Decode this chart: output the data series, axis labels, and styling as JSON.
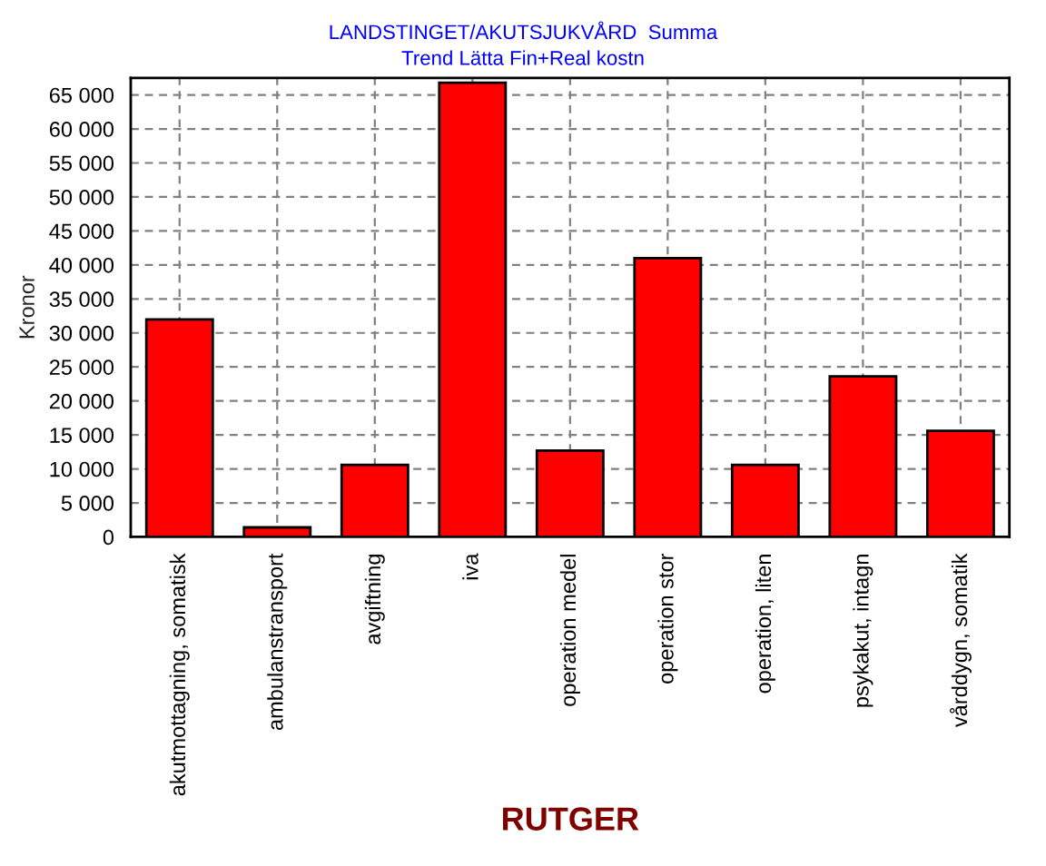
{
  "chart_data": {
    "type": "bar",
    "title": "LANDSTINGET/AKUTSJUKVÅRD  Summa",
    "subtitle": "Trend Lätta Fin+Real kostn",
    "xlabel": "RUTGER",
    "ylabel": "Kronor",
    "categories": [
      "akutmottagning, somatisk",
      "ambulanstransport",
      "avgiftning",
      "iva",
      "operation medel",
      "operation stor",
      "operation, liten",
      "psykakut, intagn",
      "vårddygn, somatik"
    ],
    "values": [
      32000,
      1400,
      10600,
      66800,
      12700,
      41000,
      10600,
      23600,
      15600
    ],
    "color": "#ff0000",
    "ylim": [
      0,
      67500
    ],
    "yticks": [
      {
        "value": 0,
        "label": "0"
      },
      {
        "value": 5000,
        "label": "5 000"
      },
      {
        "value": 10000,
        "label": "10 000"
      },
      {
        "value": 15000,
        "label": "15 000"
      },
      {
        "value": 20000,
        "label": "20 000"
      },
      {
        "value": 25000,
        "label": "25 000"
      },
      {
        "value": 30000,
        "label": "30 000"
      },
      {
        "value": 35000,
        "label": "35 000"
      },
      {
        "value": 40000,
        "label": "40 000"
      },
      {
        "value": 45000,
        "label": "45 000"
      },
      {
        "value": 50000,
        "label": "50 000"
      },
      {
        "value": 55000,
        "label": "55 000"
      },
      {
        "value": 60000,
        "label": "60 000"
      },
      {
        "value": 65000,
        "label": "65 000"
      }
    ],
    "grid": true
  }
}
